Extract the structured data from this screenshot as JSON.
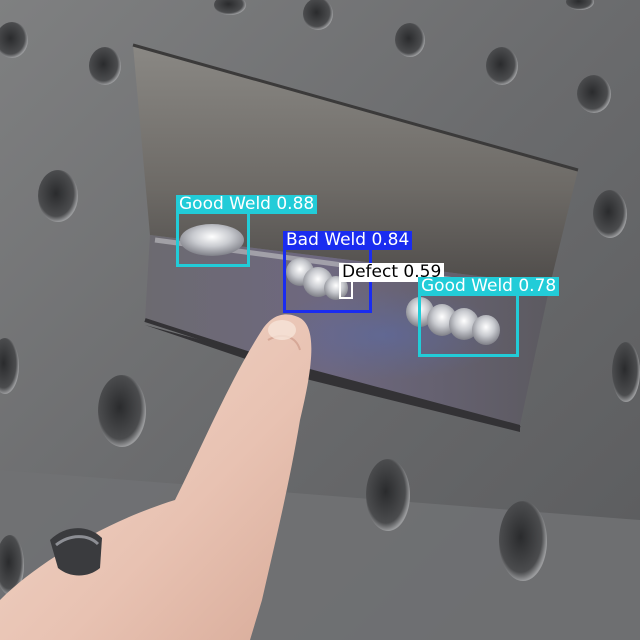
{
  "detections": [
    {
      "id": "good-weld-1",
      "label": "Good Weld 0.88",
      "color": "#22ccd8",
      "text_color": "#ffffff"
    },
    {
      "id": "bad-weld-1",
      "label": "Bad Weld 0.84",
      "color": "#1a2cf0",
      "text_color": "#ffffff"
    },
    {
      "id": "defect-1",
      "label": "Defect 0.59",
      "color": "#ffffff",
      "text_color": "#000000"
    },
    {
      "id": "good-weld-2",
      "label": "Good Weld 0.78",
      "color": "#22ccd8",
      "text_color": "#ffffff"
    }
  ]
}
